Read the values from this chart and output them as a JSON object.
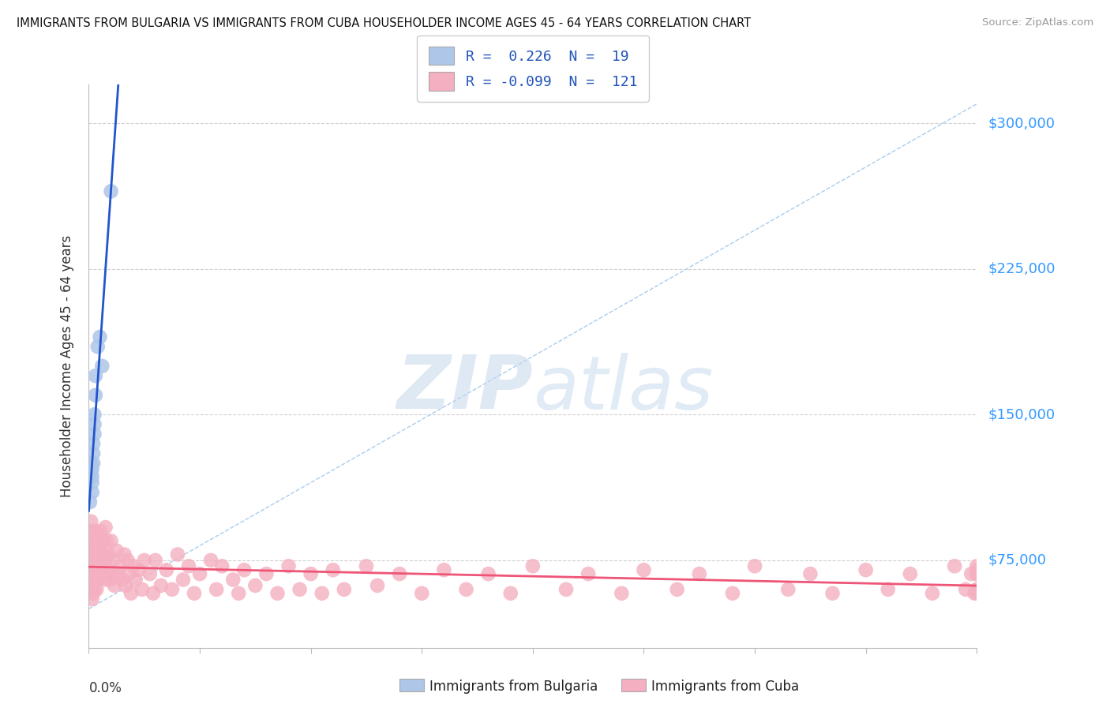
{
  "title": "IMMIGRANTS FROM BULGARIA VS IMMIGRANTS FROM CUBA HOUSEHOLDER INCOME AGES 45 - 64 YEARS CORRELATION CHART",
  "source": "Source: ZipAtlas.com",
  "ylabel": "Householder Income Ages 45 - 64 years",
  "yticks": [
    75000,
    150000,
    225000,
    300000
  ],
  "ytick_labels": [
    "$75,000",
    "$150,000",
    "$225,000",
    "$300,000"
  ],
  "xlim": [
    0.0,
    0.8
  ],
  "ylim": [
    30000,
    320000
  ],
  "bg_color": "#ffffff",
  "grid_color": "#d0d0d0",
  "watermark_zip": "ZIP",
  "watermark_atlas": "atlas",
  "bulgaria_color": "#aec6e8",
  "cuba_color": "#f4afc0",
  "bulgaria_line_color": "#2255cc",
  "cuba_line_color": "#ee5577",
  "dash_line_color": "#aaccee",
  "bulgaria_R": 0.226,
  "bulgaria_N": 19,
  "cuba_R": -0.099,
  "cuba_N": 121,
  "legend_label_bulgaria": "R =  0.226  N =  19",
  "legend_label_cuba": "R = -0.099  N =  121",
  "bulgaria_x": [
    0.001,
    0.002,
    0.002,
    0.003,
    0.003,
    0.003,
    0.003,
    0.004,
    0.004,
    0.004,
    0.005,
    0.005,
    0.005,
    0.006,
    0.006,
    0.008,
    0.01,
    0.012,
    0.02
  ],
  "bulgaria_y": [
    105000,
    120000,
    125000,
    118000,
    122000,
    115000,
    110000,
    125000,
    130000,
    135000,
    140000,
    145000,
    150000,
    160000,
    170000,
    185000,
    190000,
    175000,
    265000
  ],
  "cuba_x": [
    0.001,
    0.001,
    0.002,
    0.002,
    0.002,
    0.002,
    0.003,
    0.003,
    0.003,
    0.003,
    0.003,
    0.004,
    0.004,
    0.004,
    0.004,
    0.005,
    0.005,
    0.005,
    0.006,
    0.006,
    0.006,
    0.007,
    0.007,
    0.007,
    0.008,
    0.008,
    0.009,
    0.009,
    0.01,
    0.01,
    0.011,
    0.011,
    0.012,
    0.012,
    0.013,
    0.014,
    0.015,
    0.015,
    0.016,
    0.017,
    0.018,
    0.019,
    0.02,
    0.021,
    0.022,
    0.023,
    0.025,
    0.026,
    0.028,
    0.03,
    0.032,
    0.033,
    0.035,
    0.036,
    0.038,
    0.04,
    0.042,
    0.045,
    0.048,
    0.05,
    0.055,
    0.058,
    0.06,
    0.065,
    0.07,
    0.075,
    0.08,
    0.085,
    0.09,
    0.095,
    0.1,
    0.11,
    0.115,
    0.12,
    0.13,
    0.135,
    0.14,
    0.15,
    0.16,
    0.17,
    0.18,
    0.19,
    0.2,
    0.21,
    0.22,
    0.23,
    0.25,
    0.26,
    0.28,
    0.3,
    0.32,
    0.34,
    0.36,
    0.38,
    0.4,
    0.43,
    0.45,
    0.48,
    0.5,
    0.53,
    0.55,
    0.58,
    0.6,
    0.63,
    0.65,
    0.67,
    0.7,
    0.72,
    0.74,
    0.76,
    0.78,
    0.79,
    0.795,
    0.798,
    0.8,
    0.8,
    0.8,
    0.8,
    0.8,
    0.8,
    0.8
  ],
  "cuba_y": [
    85000,
    75000,
    95000,
    78000,
    68000,
    60000,
    90000,
    80000,
    72000,
    65000,
    55000,
    85000,
    75000,
    68000,
    58000,
    80000,
    70000,
    60000,
    90000,
    78000,
    65000,
    85000,
    72000,
    60000,
    78000,
    65000,
    85000,
    70000,
    80000,
    68000,
    90000,
    72000,
    85000,
    70000,
    78000,
    65000,
    92000,
    75000,
    85000,
    70000,
    78000,
    65000,
    85000,
    68000,
    75000,
    62000,
    80000,
    68000,
    72000,
    65000,
    78000,
    62000,
    75000,
    68000,
    58000,
    72000,
    65000,
    70000,
    60000,
    75000,
    68000,
    58000,
    75000,
    62000,
    70000,
    60000,
    78000,
    65000,
    72000,
    58000,
    68000,
    75000,
    60000,
    72000,
    65000,
    58000,
    70000,
    62000,
    68000,
    58000,
    72000,
    60000,
    68000,
    58000,
    70000,
    60000,
    72000,
    62000,
    68000,
    58000,
    70000,
    60000,
    68000,
    58000,
    72000,
    60000,
    68000,
    58000,
    70000,
    60000,
    68000,
    58000,
    72000,
    60000,
    68000,
    58000,
    70000,
    60000,
    68000,
    58000,
    72000,
    60000,
    68000,
    58000,
    70000,
    60000,
    68000,
    58000,
    72000,
    60000,
    68000
  ]
}
